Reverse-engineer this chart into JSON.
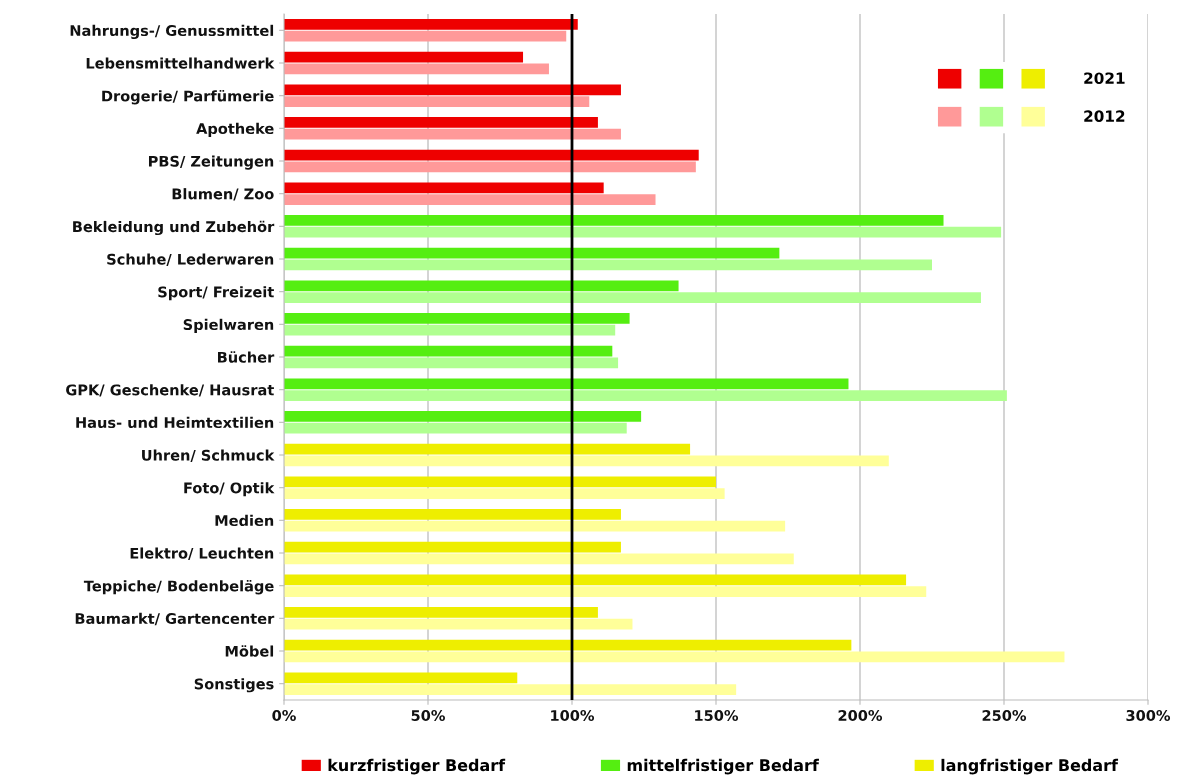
{
  "chart_data": {
    "type": "bar",
    "orientation": "horizontal",
    "categories": [
      "Nahrungs-/ Genussmittel",
      "Lebensmittelhandwerk",
      "Drogerie/ Parfümerie",
      "Apotheke",
      "PBS/ Zeitungen",
      "Blumen/ Zoo",
      "Bekleidung und Zubehör",
      "Schuhe/ Lederwaren",
      "Sport/ Freizeit",
      "Spielwaren",
      "Bücher",
      "GPK/ Geschenke/ Hausrat",
      "Haus- und Heimtextilien",
      "Uhren/ Schmuck",
      "Foto/ Optik",
      "Medien",
      "Elektro/ Leuchten",
      "Teppiche/ Bodenbeläge",
      "Baumarkt/ Gartencenter",
      "Möbel",
      "Sonstiges"
    ],
    "series": [
      {
        "name": "2021",
        "colors": [
          "#ee0000",
          "#ee0000",
          "#ee0000",
          "#ee0000",
          "#ee0000",
          "#ee0000",
          "#55ee11",
          "#55ee11",
          "#55ee11",
          "#55ee11",
          "#55ee11",
          "#55ee11",
          "#55ee11",
          "#eeee00",
          "#eeee00",
          "#eeee00",
          "#eeee00",
          "#eeee00",
          "#eeee00",
          "#eeee00",
          "#eeee00"
        ],
        "values": [
          102,
          83,
          117,
          109,
          144,
          111,
          229,
          172,
          137,
          120,
          114,
          196,
          124,
          141,
          150,
          117,
          117,
          216,
          109,
          197,
          81
        ]
      },
      {
        "name": "2012",
        "colors": [
          "#ff9999",
          "#ff9999",
          "#ff9999",
          "#ff9999",
          "#ff9999",
          "#ff9999",
          "#b0ff90",
          "#b0ff90",
          "#b0ff90",
          "#b0ff90",
          "#b0ff90",
          "#b0ff90",
          "#b0ff90",
          "#ffff99",
          "#ffff99",
          "#ffff99",
          "#ffff99",
          "#ffff99",
          "#ffff99",
          "#ffff99",
          "#ffff99"
        ],
        "values": [
          98,
          92,
          106,
          117,
          143,
          129,
          249,
          225,
          242,
          115,
          116,
          251,
          119,
          210,
          153,
          174,
          177,
          223,
          121,
          271,
          157
        ]
      }
    ],
    "xlim": [
      0,
      300
    ],
    "xticks": [
      {
        "value": 0,
        "label": "0%"
      },
      {
        "value": 50,
        "label": "50%"
      },
      {
        "value": 100,
        "label": "100%"
      },
      {
        "value": 150,
        "label": "150%"
      },
      {
        "value": 200,
        "label": "200%"
      },
      {
        "value": 250,
        "label": "250%"
      },
      {
        "value": 300,
        "label": "300%"
      }
    ],
    "grid": "x",
    "legend": "top right",
    "ref_lines": [
      {
        "axis": "x",
        "value": 100,
        "color": "#000000"
      }
    ],
    "annotations": [
      "kurzfristiger Bedarf",
      "mittelfristiger Bedarf",
      "langfristiger Bedarf"
    ]
  }
}
